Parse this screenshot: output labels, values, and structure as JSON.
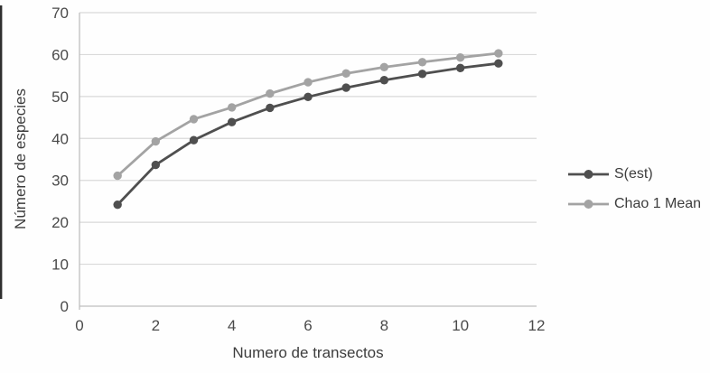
{
  "chart_data": {
    "type": "line",
    "title": "",
    "xlabel": "Numero de transectos",
    "ylabel": "Número de especies",
    "x": [
      1,
      2,
      3,
      4,
      5,
      6,
      7,
      8,
      9,
      10,
      11
    ],
    "series": [
      {
        "name": "S(est)",
        "color": "#4f4f4f",
        "values": [
          24.2,
          33.7,
          39.6,
          43.9,
          47.3,
          49.9,
          52.1,
          53.9,
          55.4,
          56.8,
          57.9
        ]
      },
      {
        "name": "Chao 1 Mean",
        "color": "#a3a3a3",
        "values": [
          31.1,
          39.3,
          44.6,
          47.4,
          50.7,
          53.4,
          55.5,
          57.0,
          58.2,
          59.3,
          60.3
        ]
      }
    ],
    "xlim": [
      0,
      12
    ],
    "ylim": [
      0,
      70
    ],
    "x_ticks": [
      0,
      2,
      4,
      6,
      8,
      10,
      12
    ],
    "y_ticks": [
      0,
      10,
      20,
      30,
      40,
      50,
      60,
      70
    ],
    "grid": "horizontal",
    "legend_position": "right",
    "marker": "circle"
  },
  "colors": {
    "gridline": "#d9d9d9",
    "axis_line": "#bfbfbf",
    "tick_text": "#4a4a4a",
    "title_text": "#3d3d3d",
    "scan_artifact": "#2f2f2f"
  }
}
